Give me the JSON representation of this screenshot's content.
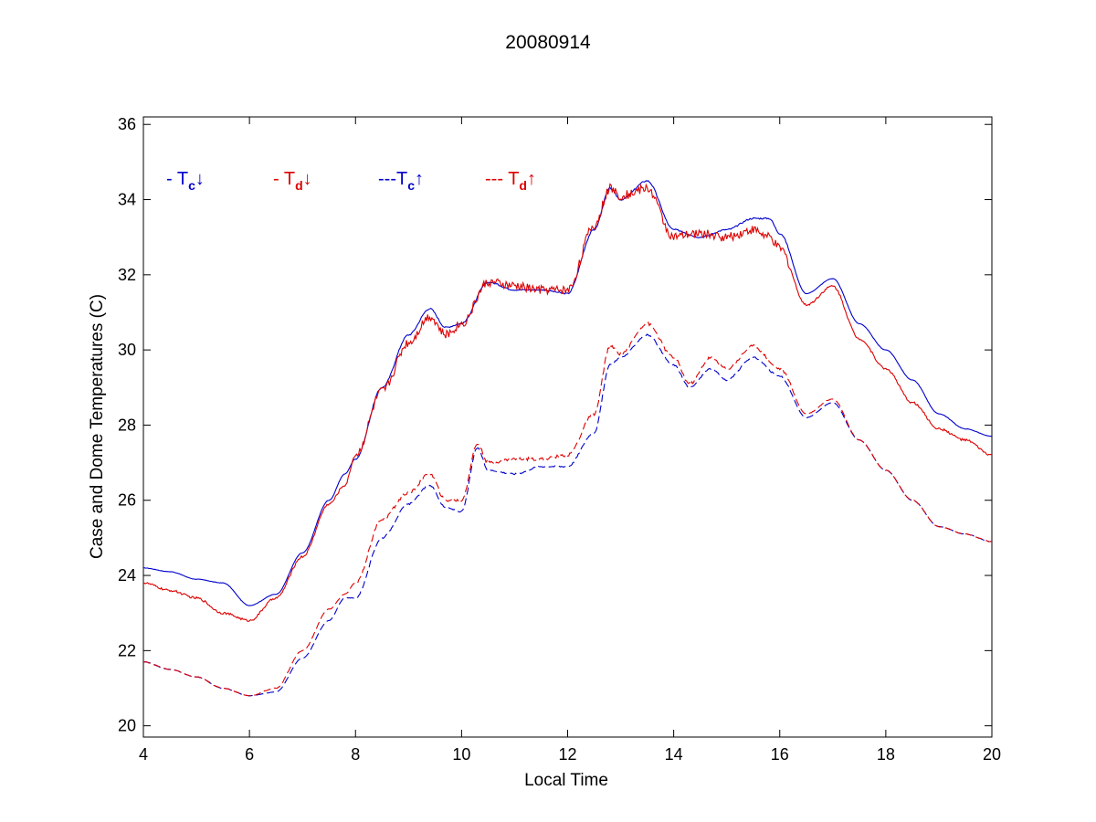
{
  "chart_data": {
    "type": "line",
    "title": "20080914",
    "xlabel": "Local Time",
    "ylabel": "Case and Dome Temperatures (C)",
    "xlim": [
      4,
      20
    ],
    "ylim": [
      19.7,
      36.2
    ],
    "xticks": [
      4,
      6,
      8,
      10,
      12,
      14,
      16,
      18,
      20
    ],
    "yticks": [
      20,
      22,
      24,
      26,
      28,
      30,
      32,
      34,
      36
    ],
    "xtick_labels": [
      "4",
      "6",
      "8",
      "10",
      "12",
      "14",
      "16",
      "18",
      "20"
    ],
    "ytick_labels": [
      "20",
      "22",
      "24",
      "26",
      "28",
      "30",
      "32",
      "34",
      "36"
    ],
    "grid": false,
    "legend_position": "top-left, inside plot",
    "series": [
      {
        "legend_prefix": "- ",
        "legend_base": "T",
        "legend_sub": "c",
        "legend_arrow": "↓",
        "color": "#0000cc",
        "dash": "solid",
        "noise": 0.02,
        "x": [
          4.0,
          4.5,
          5.0,
          5.5,
          6.0,
          6.5,
          7.0,
          7.5,
          7.8,
          8.0,
          8.5,
          9.0,
          9.4,
          9.7,
          10.0,
          10.5,
          11.0,
          11.5,
          12.0,
          12.5,
          12.8,
          13.0,
          13.5,
          14.0,
          14.5,
          15.0,
          15.5,
          15.8,
          16.0,
          16.5,
          17.0,
          17.5,
          18.0,
          18.5,
          19.0,
          19.5,
          20.0
        ],
        "y": [
          24.2,
          24.1,
          23.9,
          23.8,
          23.2,
          23.5,
          24.6,
          26.0,
          26.7,
          27.1,
          29.0,
          30.4,
          31.1,
          30.6,
          30.7,
          31.8,
          31.6,
          31.6,
          31.5,
          33.2,
          34.3,
          34.0,
          34.5,
          33.2,
          33.0,
          33.2,
          33.5,
          33.5,
          33.1,
          31.5,
          31.9,
          30.7,
          30.0,
          29.2,
          28.3,
          27.9,
          27.7
        ]
      },
      {
        "legend_prefix": "- ",
        "legend_base": "T",
        "legend_sub": "d",
        "legend_arrow": "↓",
        "color": "#dd0000",
        "dash": "solid",
        "noise": 0.12,
        "x": [
          4.0,
          4.5,
          5.0,
          5.5,
          6.0,
          6.5,
          7.0,
          7.5,
          7.8,
          8.0,
          8.5,
          9.0,
          9.4,
          9.7,
          10.0,
          10.5,
          11.0,
          11.5,
          12.0,
          12.5,
          12.8,
          13.0,
          13.5,
          14.0,
          14.5,
          15.0,
          15.5,
          15.8,
          16.0,
          16.5,
          17.0,
          17.5,
          18.0,
          18.5,
          19.0,
          19.5,
          20.0
        ],
        "y": [
          23.8,
          23.6,
          23.4,
          23.0,
          22.8,
          23.4,
          24.5,
          25.9,
          26.4,
          27.2,
          28.9,
          30.2,
          30.9,
          30.4,
          30.7,
          31.8,
          31.7,
          31.6,
          31.6,
          33.3,
          34.3,
          34.1,
          34.3,
          33.0,
          33.1,
          33.0,
          33.2,
          33.0,
          32.7,
          31.2,
          31.7,
          30.3,
          29.5,
          28.6,
          27.9,
          27.6,
          27.2
        ]
      },
      {
        "legend_prefix": "---",
        "legend_base": "T",
        "legend_sub": "c",
        "legend_arrow": "↑",
        "color": "#0000cc",
        "dash": "dashed",
        "noise": 0.02,
        "x": [
          4.0,
          4.5,
          5.0,
          5.5,
          6.0,
          6.5,
          7.0,
          7.5,
          7.8,
          8.0,
          8.5,
          9.0,
          9.4,
          9.7,
          10.0,
          10.3,
          10.5,
          11.0,
          11.5,
          12.0,
          12.5,
          12.8,
          13.0,
          13.5,
          14.0,
          14.3,
          14.7,
          15.0,
          15.5,
          16.0,
          16.5,
          17.0,
          17.5,
          18.0,
          18.5,
          19.0,
          19.5,
          20.0
        ],
        "y": [
          21.7,
          21.5,
          21.3,
          21.0,
          20.8,
          20.9,
          21.8,
          22.8,
          23.4,
          23.4,
          25.0,
          25.9,
          26.4,
          25.8,
          25.7,
          27.4,
          26.8,
          26.7,
          26.9,
          26.9,
          27.8,
          29.6,
          29.8,
          30.4,
          29.6,
          29.0,
          29.5,
          29.2,
          29.8,
          29.3,
          28.2,
          28.6,
          27.6,
          26.8,
          26.0,
          25.3,
          25.1,
          24.9
        ]
      },
      {
        "legend_prefix": "--- ",
        "legend_base": "T",
        "legend_sub": "d",
        "legend_arrow": "↑",
        "color": "#dd0000",
        "dash": "dashed",
        "noise": 0.04,
        "x": [
          4.0,
          4.5,
          5.0,
          5.5,
          6.0,
          6.5,
          7.0,
          7.5,
          7.8,
          8.0,
          8.5,
          9.0,
          9.4,
          9.7,
          10.0,
          10.3,
          10.5,
          11.0,
          11.5,
          12.0,
          12.5,
          12.8,
          13.0,
          13.5,
          14.0,
          14.3,
          14.7,
          15.0,
          15.5,
          16.0,
          16.5,
          17.0,
          17.5,
          18.0,
          18.5,
          19.0,
          19.5,
          20.0
        ],
        "y": [
          21.7,
          21.5,
          21.3,
          21.0,
          20.8,
          21.0,
          22.0,
          23.1,
          23.5,
          23.8,
          25.5,
          26.2,
          26.7,
          26.0,
          26.0,
          27.5,
          27.0,
          27.1,
          27.1,
          27.2,
          28.3,
          30.1,
          29.9,
          30.7,
          29.8,
          29.1,
          29.8,
          29.5,
          30.1,
          29.5,
          28.3,
          28.7,
          27.6,
          26.8,
          26.0,
          25.3,
          25.1,
          24.9
        ]
      }
    ]
  }
}
